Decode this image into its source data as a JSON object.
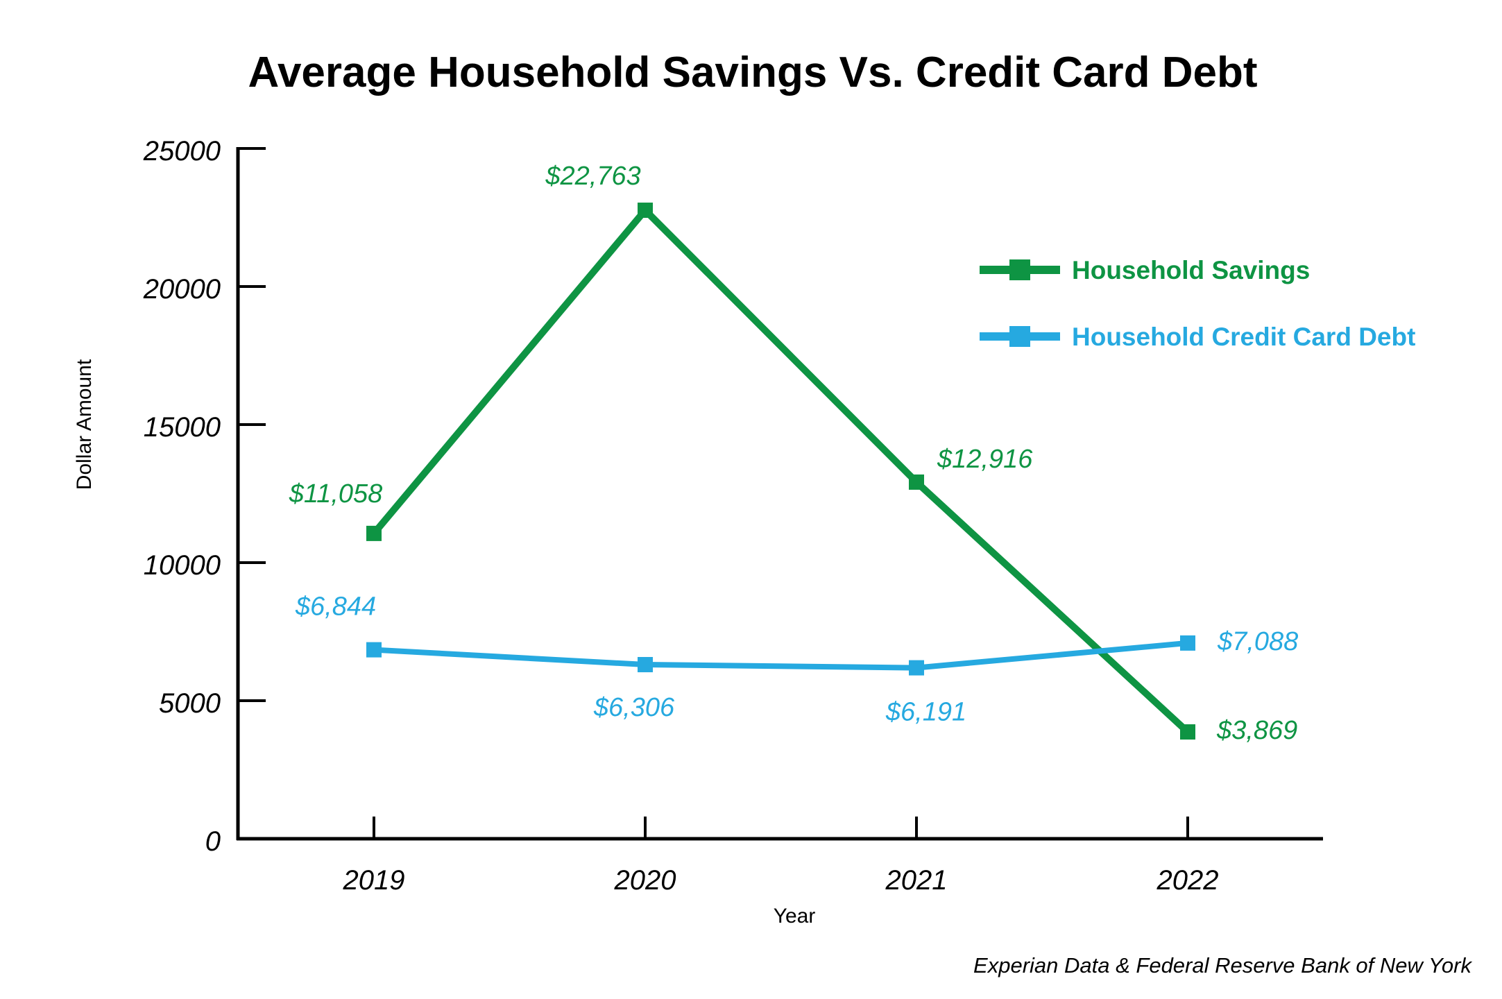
{
  "chart_data": {
    "type": "line",
    "title": "Average Household Savings Vs. Credit Card Debt",
    "xlabel": "Year",
    "ylabel": "Dollar Amount",
    "categories": [
      "2019",
      "2020",
      "2021",
      "2022"
    ],
    "ylim": [
      0,
      25000
    ],
    "yticks": [
      "0",
      "5000",
      "10000",
      "15000",
      "20000",
      "25000"
    ],
    "ytick_values": [
      0,
      5000,
      10000,
      15000,
      20000,
      25000
    ],
    "grid": false,
    "legend_position": "top-right",
    "series": [
      {
        "name": "Household Savings",
        "color": "#0E9443",
        "values": [
          11058,
          22763,
          12916,
          3869
        ],
        "labels": [
          "$11,058",
          "$22,763",
          "$12,916",
          "$3,869"
        ]
      },
      {
        "name": "Household Credit Card Debt",
        "color": "#26A9E0",
        "values": [
          6844,
          6306,
          6191,
          7088
        ],
        "labels": [
          "$6,844",
          "$6,306",
          "$6,191",
          "$7,088"
        ]
      }
    ],
    "source": "Experian Data & Federal Reserve Bank of New York"
  }
}
